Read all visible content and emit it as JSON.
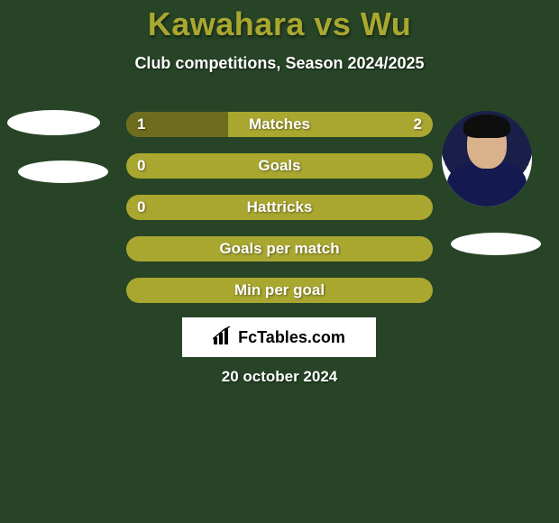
{
  "background_color": "#274427",
  "title": {
    "text": "Kawahara vs Wu",
    "color": "#a9a72f",
    "fontsize": 36,
    "fontweight": 800
  },
  "subtitle": {
    "text": "Club competitions, Season 2024/2025",
    "color": "#ffffff",
    "fontsize": 18
  },
  "bar_style": {
    "height": 28,
    "radius": 14,
    "gap": 18,
    "track_color": "#a9a72f",
    "fill_left_color": "#6e6d1e",
    "fill_right_color": "#a9a72f",
    "label_color": "#ffffff",
    "label_fontsize": 17
  },
  "bars": [
    {
      "label": "Matches",
      "left": "1",
      "right": "2",
      "left_pct": 33.3,
      "right_pct": 66.7
    },
    {
      "label": "Goals",
      "left": "0",
      "right": "",
      "left_pct": 0,
      "right_pct": 100
    },
    {
      "label": "Hattricks",
      "left": "0",
      "right": "",
      "left_pct": 0,
      "right_pct": 100
    },
    {
      "label": "Goals per match",
      "left": "",
      "right": "",
      "left_pct": 0,
      "right_pct": 100
    },
    {
      "label": "Min per goal",
      "left": "",
      "right": "",
      "left_pct": 0,
      "right_pct": 100
    }
  ],
  "logo": {
    "brand": "FcTables.com",
    "box_bg": "#ffffff",
    "text_color": "#000000",
    "fontsize": 18
  },
  "date": {
    "text": "20 october 2024",
    "color": "#ffffff",
    "fontsize": 17
  },
  "placeholders": {
    "color": "#ffffff"
  }
}
